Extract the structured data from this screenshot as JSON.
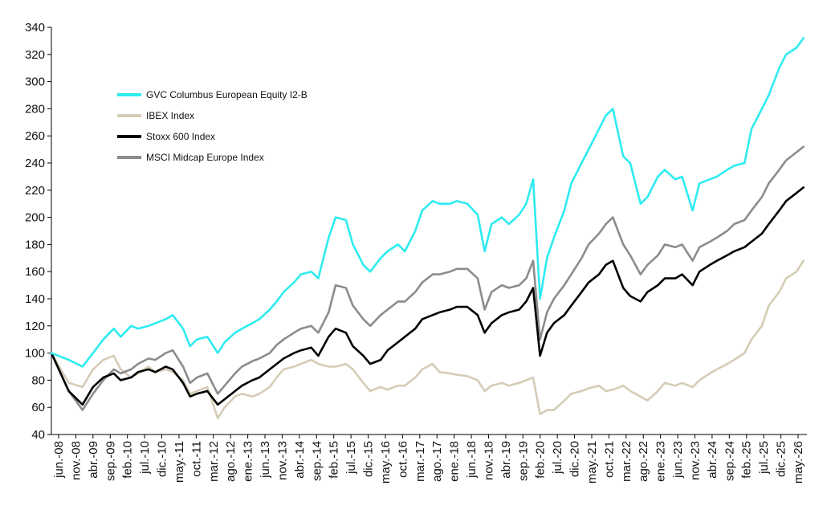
{
  "chart_data": {
    "type": "line",
    "title": "",
    "xlabel": "",
    "ylabel": "",
    "ylim": [
      40,
      340
    ],
    "yticks": [
      40,
      60,
      80,
      100,
      120,
      140,
      160,
      180,
      200,
      220,
      240,
      260,
      280,
      300,
      320,
      340
    ],
    "xlim": [
      "2008-06",
      "2026-08"
    ],
    "xticks": [
      "jun.-08",
      "nov.-08",
      "abr.-09",
      "sep.-09",
      "feb.-10",
      "jul.-10",
      "dic.-10",
      "may.-11",
      "oct.-11",
      "mar.-12",
      "ago.-12",
      "ene.-13",
      "jun.-13",
      "nov.-13",
      "abr.-14",
      "sep.-14",
      "feb.-15",
      "jul.-15",
      "dic.-15",
      "may.-16",
      "oct.-16",
      "mar.-17",
      "ago.-17",
      "ene.-18",
      "jun.-18",
      "nov.-18",
      "abr.-19",
      "sep.-19",
      "feb.-20",
      "jul.-20",
      "dic.-20",
      "may.-21",
      "oct.-21",
      "mar.-22",
      "ago.-22",
      "ene.-23",
      "jun.-23",
      "nov.-23",
      "abr.-24",
      "sep.-24",
      "feb.-25",
      "jul.-25",
      "dic.-25",
      "may.-26"
    ],
    "grid": false,
    "legend_position": "upper-left",
    "x": [
      "2008-06",
      "2008-11",
      "2009-03",
      "2009-06",
      "2009-09",
      "2009-12",
      "2010-02",
      "2010-05",
      "2010-07",
      "2010-10",
      "2010-12",
      "2011-03",
      "2011-05",
      "2011-08",
      "2011-10",
      "2011-12",
      "2012-03",
      "2012-06",
      "2012-08",
      "2012-11",
      "2013-01",
      "2013-04",
      "2013-06",
      "2013-09",
      "2013-11",
      "2014-01",
      "2014-04",
      "2014-06",
      "2014-09",
      "2014-11",
      "2015-02",
      "2015-04",
      "2015-07",
      "2015-09",
      "2015-12",
      "2016-02",
      "2016-05",
      "2016-07",
      "2016-10",
      "2016-12",
      "2017-03",
      "2017-05",
      "2017-08",
      "2017-10",
      "2018-01",
      "2018-03",
      "2018-06",
      "2018-09",
      "2018-11",
      "2019-01",
      "2019-04",
      "2019-06",
      "2019-09",
      "2019-11",
      "2020-01",
      "2020-03",
      "2020-05",
      "2020-07",
      "2020-10",
      "2020-12",
      "2021-03",
      "2021-05",
      "2021-08",
      "2021-10",
      "2021-12",
      "2022-03",
      "2022-05",
      "2022-08",
      "2022-10",
      "2023-01",
      "2023-03",
      "2023-06",
      "2023-08",
      "2023-11",
      "2024-01",
      "2024-04",
      "2024-06",
      "2024-09",
      "2024-11",
      "2025-02",
      "2025-04",
      "2025-07",
      "2025-09",
      "2025-12",
      "2026-02",
      "2026-05",
      "2026-07"
    ],
    "series": [
      {
        "name": "GVC Columbus European Equity I2-B",
        "color": "#2EEBF0",
        "values": [
          100,
          95,
          90,
          100,
          110,
          118,
          112,
          120,
          118,
          120,
          122,
          125,
          128,
          118,
          105,
          110,
          112,
          100,
          108,
          115,
          118,
          122,
          125,
          132,
          138,
          145,
          152,
          158,
          160,
          155,
          185,
          200,
          198,
          180,
          165,
          160,
          170,
          175,
          180,
          175,
          190,
          205,
          212,
          210,
          210,
          212,
          210,
          202,
          175,
          195,
          200,
          195,
          202,
          210,
          228,
          140,
          170,
          185,
          205,
          225,
          240,
          250,
          265,
          275,
          280,
          245,
          240,
          210,
          215,
          230,
          235,
          228,
          230,
          205,
          225,
          228,
          230,
          235,
          238,
          240,
          265,
          280,
          290,
          310,
          320,
          325,
          332
        ]
      },
      {
        "name": "IBEX Index",
        "color": "#D5CCB6",
        "values": [
          100,
          78,
          75,
          88,
          95,
          98,
          88,
          82,
          85,
          90,
          86,
          88,
          86,
          80,
          70,
          72,
          75,
          52,
          60,
          68,
          70,
          68,
          70,
          75,
          82,
          88,
          90,
          92,
          95,
          92,
          90,
          90,
          92,
          88,
          78,
          72,
          75,
          73,
          76,
          76,
          82,
          88,
          92,
          86,
          85,
          84,
          83,
          80,
          72,
          76,
          78,
          76,
          78,
          80,
          82,
          55,
          58,
          58,
          65,
          70,
          72,
          74,
          76,
          72,
          73,
          76,
          72,
          68,
          65,
          72,
          78,
          76,
          78,
          75,
          80,
          85,
          88,
          92,
          95,
          100,
          110,
          120,
          135,
          145,
          155,
          160,
          168
        ]
      },
      {
        "name": "Stoxx 600 Index",
        "color": "#000000",
        "values": [
          100,
          72,
          62,
          75,
          82,
          85,
          80,
          82,
          86,
          88,
          86,
          90,
          88,
          78,
          68,
          70,
          72,
          62,
          66,
          72,
          76,
          80,
          82,
          88,
          92,
          96,
          100,
          102,
          104,
          98,
          112,
          118,
          115,
          105,
          98,
          92,
          95,
          102,
          108,
          112,
          118,
          125,
          128,
          130,
          132,
          134,
          134,
          128,
          115,
          122,
          128,
          130,
          132,
          138,
          148,
          98,
          115,
          122,
          128,
          135,
          145,
          152,
          158,
          165,
          168,
          148,
          142,
          138,
          145,
          150,
          155,
          155,
          158,
          150,
          160,
          165,
          168,
          172,
          175,
          178,
          182,
          188,
          195,
          205,
          212,
          218,
          222
        ]
      },
      {
        "name": "MSCI Midcap Europe Index",
        "color": "#8C8C8C",
        "values": [
          100,
          72,
          58,
          70,
          80,
          88,
          85,
          88,
          92,
          96,
          95,
          100,
          102,
          90,
          78,
          82,
          85,
          70,
          76,
          85,
          90,
          94,
          96,
          100,
          106,
          110,
          115,
          118,
          120,
          115,
          130,
          150,
          148,
          135,
          125,
          120,
          128,
          132,
          138,
          138,
          145,
          152,
          158,
          158,
          160,
          162,
          162,
          155,
          132,
          145,
          150,
          148,
          150,
          155,
          168,
          110,
          130,
          140,
          150,
          158,
          170,
          180,
          188,
          195,
          200,
          180,
          172,
          158,
          165,
          172,
          180,
          178,
          180,
          168,
          178,
          182,
          185,
          190,
          195,
          198,
          205,
          215,
          225,
          235,
          242,
          248,
          252
        ]
      }
    ]
  }
}
